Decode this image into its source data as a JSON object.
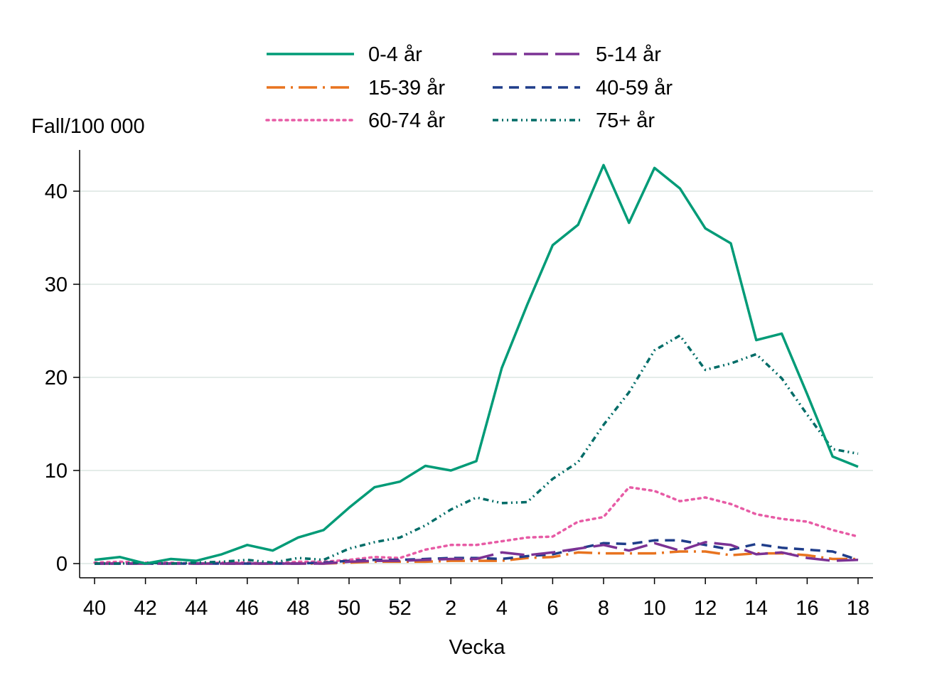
{
  "chart_data": {
    "type": "line",
    "title": "",
    "ylabel": "Fall/100 000",
    "xlabel": "Vecka",
    "ylim": [
      0,
      44
    ],
    "yticks": [
      0,
      10,
      20,
      30,
      40
    ],
    "grid": true,
    "legend_position": "top",
    "x": [
      40,
      41,
      42,
      43,
      44,
      45,
      46,
      47,
      48,
      49,
      50,
      51,
      52,
      1,
      2,
      3,
      4,
      5,
      6,
      7,
      8,
      9,
      10,
      11,
      12,
      13,
      14,
      15,
      16,
      17,
      18
    ],
    "xtick_labels": [
      "40",
      "42",
      "44",
      "46",
      "48",
      "50",
      "52",
      "2",
      "4",
      "6",
      "8",
      "10",
      "12",
      "14",
      "16",
      "18"
    ],
    "series": [
      {
        "name": "0-4 år",
        "color": "#009b77",
        "style": "solid",
        "values": [
          0.4,
          0.7,
          0.0,
          0.5,
          0.3,
          1.0,
          2.0,
          1.4,
          2.8,
          3.6,
          6.0,
          8.2,
          8.8,
          10.5,
          10.0,
          11.0,
          21.0,
          27.8,
          34.2,
          36.4,
          42.8,
          36.6,
          42.5,
          40.3,
          36.0,
          34.4,
          24.0,
          24.7,
          18.2,
          11.5,
          10.4
        ]
      },
      {
        "name": "5-14 år",
        "color": "#7b3294",
        "style": "longdash",
        "values": [
          0.0,
          0.0,
          0.0,
          0.0,
          0.0,
          0.0,
          0.0,
          0.0,
          0.0,
          0.0,
          0.2,
          0.3,
          0.3,
          0.4,
          0.5,
          0.5,
          1.2,
          0.9,
          1.2,
          1.6,
          2.0,
          1.4,
          2.2,
          1.4,
          2.3,
          2.0,
          1.0,
          1.2,
          0.6,
          0.3,
          0.4
        ]
      },
      {
        "name": "15-39 år",
        "color": "#e8731f",
        "style": "dashdot",
        "values": [
          0.0,
          0.0,
          0.0,
          0.0,
          0.0,
          0.0,
          0.0,
          0.0,
          0.0,
          0.0,
          0.1,
          0.2,
          0.2,
          0.2,
          0.3,
          0.3,
          0.3,
          0.6,
          0.7,
          1.2,
          1.1,
          1.1,
          1.1,
          1.3,
          1.3,
          0.9,
          1.1,
          1.1,
          0.9,
          0.5,
          0.5
        ]
      },
      {
        "name": "40-59 år",
        "color": "#1f3d8a",
        "style": "shortdash",
        "values": [
          0.0,
          0.0,
          0.0,
          0.0,
          0.0,
          0.0,
          0.0,
          0.0,
          0.0,
          0.1,
          0.3,
          0.4,
          0.4,
          0.5,
          0.6,
          0.6,
          0.5,
          0.8,
          1.0,
          1.6,
          2.2,
          2.1,
          2.5,
          2.5,
          2.0,
          1.5,
          2.1,
          1.7,
          1.5,
          1.3,
          0.4
        ]
      },
      {
        "name": "60-74 år",
        "color": "#e75ba5",
        "style": "dotted",
        "values": [
          0.1,
          0.2,
          0.1,
          0.1,
          0.0,
          0.1,
          0.1,
          0.0,
          0.2,
          0.2,
          0.4,
          0.7,
          0.6,
          1.5,
          2.0,
          2.0,
          2.4,
          2.8,
          2.9,
          4.5,
          5.0,
          8.2,
          7.8,
          6.7,
          7.1,
          6.4,
          5.3,
          4.8,
          4.5,
          3.6,
          2.9
        ]
      },
      {
        "name": "75+ år",
        "color": "#006c67",
        "style": "dashdotdot",
        "values": [
          0.0,
          0.0,
          0.1,
          0.0,
          0.1,
          0.2,
          0.4,
          0.1,
          0.6,
          0.4,
          1.6,
          2.3,
          2.8,
          4.1,
          5.8,
          7.1,
          6.5,
          6.6,
          9.1,
          10.9,
          14.9,
          18.4,
          22.9,
          24.5,
          20.8,
          21.5,
          22.5,
          19.9,
          16.0,
          12.3,
          11.8
        ]
      }
    ]
  }
}
